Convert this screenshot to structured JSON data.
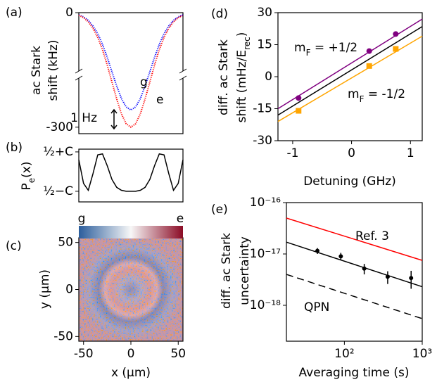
{
  "chart_data": [
    {
      "type": "line",
      "panel": "(a)",
      "ylabel": [
        "ac Stark",
        "shift (kHz)"
      ],
      "style": "dotted",
      "annotation": "1 Hz",
      "x": [
        -55,
        -50,
        -45,
        -40,
        -35,
        -30,
        -25,
        -20,
        -15,
        -10,
        -5,
        0,
        5,
        10,
        15,
        20,
        25,
        30,
        35,
        40,
        45,
        50,
        55
      ],
      "series": [
        {
          "name": "g",
          "color": "#0000ff",
          "values": [
            -6,
            -11,
            -20,
            -35,
            -55,
            -83,
            -117,
            -155,
            -192,
            -225,
            -247,
            -255,
            -247,
            -225,
            -192,
            -155,
            -117,
            -83,
            -55,
            -35,
            -20,
            -11,
            -6
          ]
        },
        {
          "name": "e",
          "color": "#ff0000",
          "values": [
            -7,
            -13,
            -24,
            -41,
            -65,
            -97,
            -137,
            -182,
            -226,
            -265,
            -291,
            -300,
            -291,
            -265,
            -226,
            -182,
            -137,
            -97,
            -65,
            -41,
            -24,
            -13,
            -7
          ]
        }
      ],
      "xlim": [
        -55,
        55
      ],
      "ylim": [
        -317,
        0
      ],
      "yticks": [
        -300,
        0
      ]
    },
    {
      "type": "line",
      "panel": "(b)",
      "ylabel": [
        [
          "P",
          {
            "sub": "e"
          },
          "(x)"
        ]
      ],
      "color": "#000000",
      "x": [
        -55,
        -50,
        -45,
        -40,
        -35,
        -30,
        -25,
        -20,
        -15,
        -10,
        -5,
        0,
        5,
        10,
        15,
        20,
        25,
        30,
        35,
        40,
        45,
        50,
        55
      ],
      "values": [
        0.6,
        -0.6,
        -0.95,
        -0.1,
        0.85,
        0.9,
        0.3,
        -0.4,
        -0.8,
        -0.95,
        -1,
        -1,
        -1,
        -0.95,
        -0.8,
        -0.4,
        0.3,
        0.9,
        0.85,
        -0.1,
        -0.95,
        -0.6,
        0.6
      ],
      "xlim": [
        -55,
        55
      ],
      "ylim": [
        -1.54,
        1.14
      ],
      "yticks": [
        {
          "value": 1,
          "label": "½+C"
        },
        {
          "value": -1,
          "label": "½−C"
        }
      ]
    },
    {
      "type": "image",
      "panel": "(c)",
      "xlabel": "x (μm)",
      "ylabel": [
        "y (μm)"
      ],
      "colorbar": {
        "labels": [
          "g",
          "e"
        ],
        "colors": [
          "#2b5d9c",
          "#f7f7f7",
          "#8b0b25"
        ]
      },
      "xlim": [
        -55,
        55
      ],
      "ylim": [
        -55,
        55
      ],
      "xticks": [
        -50,
        0,
        50
      ],
      "yticks": [
        -50,
        0,
        50
      ]
    },
    {
      "type": "scatter",
      "panel": "(d)",
      "xlabel": "Detuning (GHz)",
      "ylabel": [
        [
          "diff. ac Stark"
        ],
        [
          "shift (mHz/E",
          {
            "sub": "rec"
          },
          ")"
        ]
      ],
      "series": [
        {
          "name": [
            "m",
            {
              "sub": "F"
            },
            " = +1/2"
          ],
          "color": "#800080",
          "marker": "circle",
          "x": [
            -0.9,
            0.3,
            0.75
          ],
          "values": [
            -10,
            12,
            20
          ]
        },
        {
          "name": [
            "m",
            {
              "sub": "F"
            },
            " = -1/2"
          ],
          "color": "#ffa500",
          "marker": "square",
          "x": [
            -0.9,
            0.3,
            0.75
          ],
          "values": [
            -16,
            5,
            13
          ]
        }
      ],
      "fits": [
        {
          "color": "#800080",
          "x": [
            -1.25,
            1.2
          ],
          "values": [
            -15,
            27
          ]
        },
        {
          "color": "#000000",
          "x": [
            -1.25,
            1.2
          ],
          "values": [
            -18,
            23.5
          ]
        },
        {
          "color": "#ffa500",
          "x": [
            -1.25,
            1.2
          ],
          "values": [
            -21,
            19
          ]
        }
      ],
      "xlim": [
        -1.25,
        1.2
      ],
      "ylim": [
        -30,
        30
      ],
      "xticks": [
        -1,
        0,
        1
      ],
      "yticks": [
        -30,
        -15,
        0,
        15,
        30
      ]
    },
    {
      "type": "scatter",
      "panel": "(e)",
      "log": true,
      "xlabel": "Averaging time (s)",
      "ylabel": [
        [
          "diff. ac Stark"
        ],
        [
          "uncertainty"
        ]
      ],
      "series": [
        {
          "color": "#000000",
          "marker": "circle",
          "x": [
            45,
            90,
            180,
            360,
            720
          ],
          "values": [
            1.15e-17,
            9e-18,
            5.2e-18,
            3.6e-18,
            3.4e-18
          ],
          "errors": [
            1.5e-18,
            1.5e-18,
            1.2e-18,
            1e-18,
            1.3e-18
          ]
        }
      ],
      "fits": [
        {
          "name": "Ref. 3",
          "color": "#ff0000",
          "x": [
            18,
            1000
          ],
          "values": [
            5e-17,
            7.5e-18
          ]
        },
        {
          "color": "#000000",
          "x": [
            18,
            1000
          ],
          "values": [
            1.7e-17,
            2.3e-18
          ]
        },
        {
          "name": "QPN",
          "color": "#000000",
          "dash": true,
          "x": [
            18,
            1000
          ],
          "values": [
            4e-18,
            5.5e-19
          ]
        }
      ],
      "xlim": [
        18,
        1000
      ],
      "ylim": [
        2e-19,
        1e-16
      ],
      "xticks": [
        {
          "value": 100,
          "label": "10²"
        },
        {
          "value": 1000,
          "label": "10³"
        }
      ],
      "yticks": [
        {
          "value": 1e-18,
          "label": "10⁻¹⁸"
        },
        {
          "value": 1e-17,
          "label": "10⁻¹⁷"
        },
        {
          "value": 1e-16,
          "label": "10⁻¹⁶"
        }
      ]
    }
  ]
}
